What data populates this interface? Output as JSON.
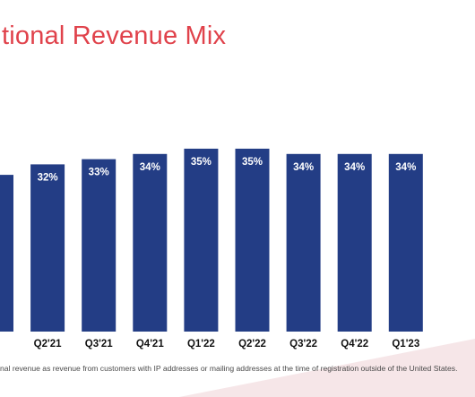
{
  "title": "tional Revenue Mix",
  "footnote": "nal revenue as revenue from customers with IP addresses or mailing addresses at the time of registration outside of the United States.",
  "colors": {
    "bar": "#233d85",
    "title": "#e0424b",
    "accent_wedge": "#f6e6e8"
  },
  "chart_data": {
    "type": "bar",
    "categories": [
      "",
      "Q2'21",
      "Q3'21",
      "Q4'21",
      "Q1'22",
      "Q2'22",
      "Q3'22",
      "Q4'22",
      "Q1'23"
    ],
    "values": [
      30,
      32,
      33,
      34,
      35,
      35,
      34,
      34,
      34
    ],
    "labels": [
      "",
      "32%",
      "33%",
      "34%",
      "35%",
      "35%",
      "34%",
      "34%",
      "34%"
    ],
    "unit": "%",
    "title": "tional Revenue Mix",
    "xlabel": "",
    "ylabel": "",
    "ylim": [
      0,
      35
    ],
    "grid": false,
    "legend": "none"
  }
}
